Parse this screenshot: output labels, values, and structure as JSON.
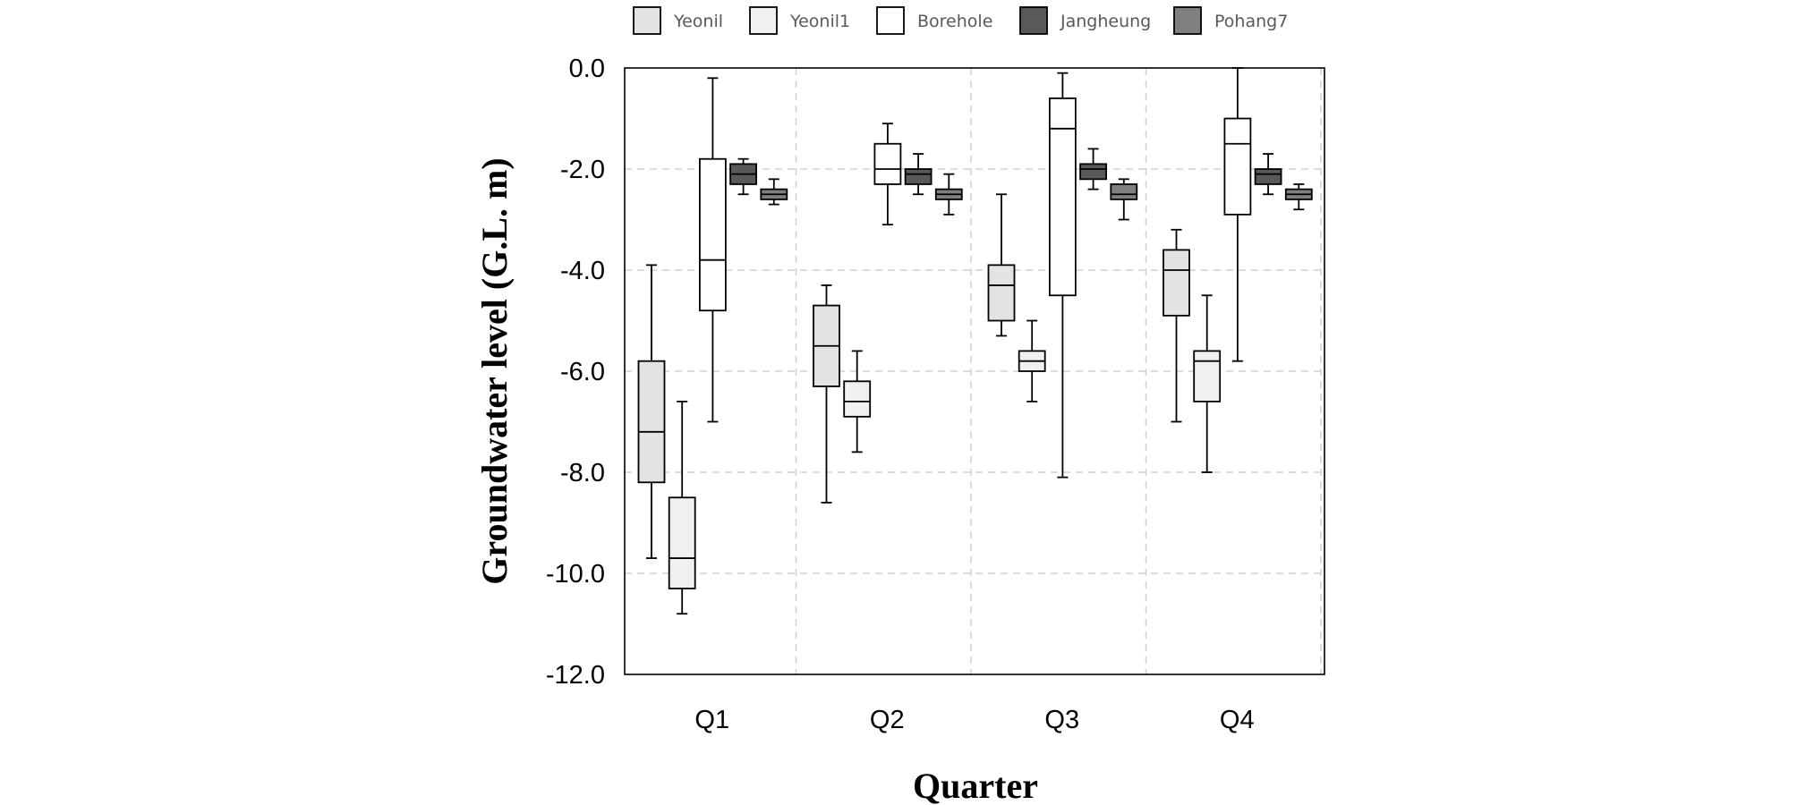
{
  "chart_data": {
    "type": "boxplot",
    "title": "",
    "xlabel": "Quarter",
    "ylabel": "Groundwater level (G.L. m)",
    "ylim": [
      -12.0,
      0.0
    ],
    "yticks": [
      "0.0",
      "-2.0",
      "-4.0",
      "-6.0",
      "-8.0",
      "-10.0",
      "-12.0"
    ],
    "categories": [
      "Q1",
      "Q2",
      "Q3",
      "Q4"
    ],
    "grid": "dashed",
    "legend_position": "top",
    "series": [
      {
        "name": "Yeonil",
        "color": "#e3e3e3",
        "boxes": [
          {
            "min": -9.7,
            "q1": -8.2,
            "median": -7.2,
            "q3": -5.8,
            "max": -3.9
          },
          {
            "min": -8.6,
            "q1": -6.3,
            "median": -5.5,
            "q3": -4.7,
            "max": -4.3
          },
          {
            "min": -5.3,
            "q1": -5.0,
            "median": -4.3,
            "q3": -3.9,
            "max": -2.5
          },
          {
            "min": -7.0,
            "q1": -4.9,
            "median": -4.0,
            "q3": -3.6,
            "max": -3.2
          }
        ]
      },
      {
        "name": "Yeonil1",
        "color": "#f0f0f0",
        "boxes": [
          {
            "min": -10.8,
            "q1": -10.3,
            "median": -9.7,
            "q3": -8.5,
            "max": -6.6
          },
          {
            "min": -7.6,
            "q1": -6.9,
            "median": -6.6,
            "q3": -6.2,
            "max": -5.6
          },
          {
            "min": -6.6,
            "q1": -6.0,
            "median": -5.8,
            "q3": -5.6,
            "max": -5.0
          },
          {
            "min": -8.0,
            "q1": -6.6,
            "median": -5.8,
            "q3": -5.6,
            "max": -4.5
          }
        ]
      },
      {
        "name": "Borehole",
        "color": "#ffffff",
        "boxes": [
          {
            "min": -7.0,
            "q1": -4.8,
            "median": -3.8,
            "q3": -1.8,
            "max": -0.2
          },
          {
            "min": -3.1,
            "q1": -2.3,
            "median": -2.0,
            "q3": -1.5,
            "max": -1.1
          },
          {
            "min": -8.1,
            "q1": -4.5,
            "median": -1.2,
            "q3": -0.6,
            "max": -0.1
          },
          {
            "min": -5.8,
            "q1": -2.9,
            "median": -1.5,
            "q3": -1.0,
            "max": 0.0
          }
        ]
      },
      {
        "name": "Jangheung",
        "color": "#595959",
        "boxes": [
          {
            "min": -2.5,
            "q1": -2.3,
            "median": -2.1,
            "q3": -1.9,
            "max": -1.8
          },
          {
            "min": -2.5,
            "q1": -2.3,
            "median": -2.1,
            "q3": -2.0,
            "max": -1.7
          },
          {
            "min": -2.4,
            "q1": -2.2,
            "median": -2.0,
            "q3": -1.9,
            "max": -1.6
          },
          {
            "min": -2.5,
            "q1": -2.3,
            "median": -2.1,
            "q3": -2.0,
            "max": -1.7
          }
        ]
      },
      {
        "name": "Pohang7",
        "color": "#7f7f7f",
        "boxes": [
          {
            "min": -2.7,
            "q1": -2.6,
            "median": -2.5,
            "q3": -2.4,
            "max": -2.2
          },
          {
            "min": -2.9,
            "q1": -2.6,
            "median": -2.5,
            "q3": -2.4,
            "max": -2.1
          },
          {
            "min": -3.0,
            "q1": -2.6,
            "median": -2.5,
            "q3": -2.3,
            "max": -2.2
          },
          {
            "min": -2.8,
            "q1": -2.6,
            "median": -2.5,
            "q3": -2.4,
            "max": -2.3
          }
        ]
      }
    ]
  }
}
